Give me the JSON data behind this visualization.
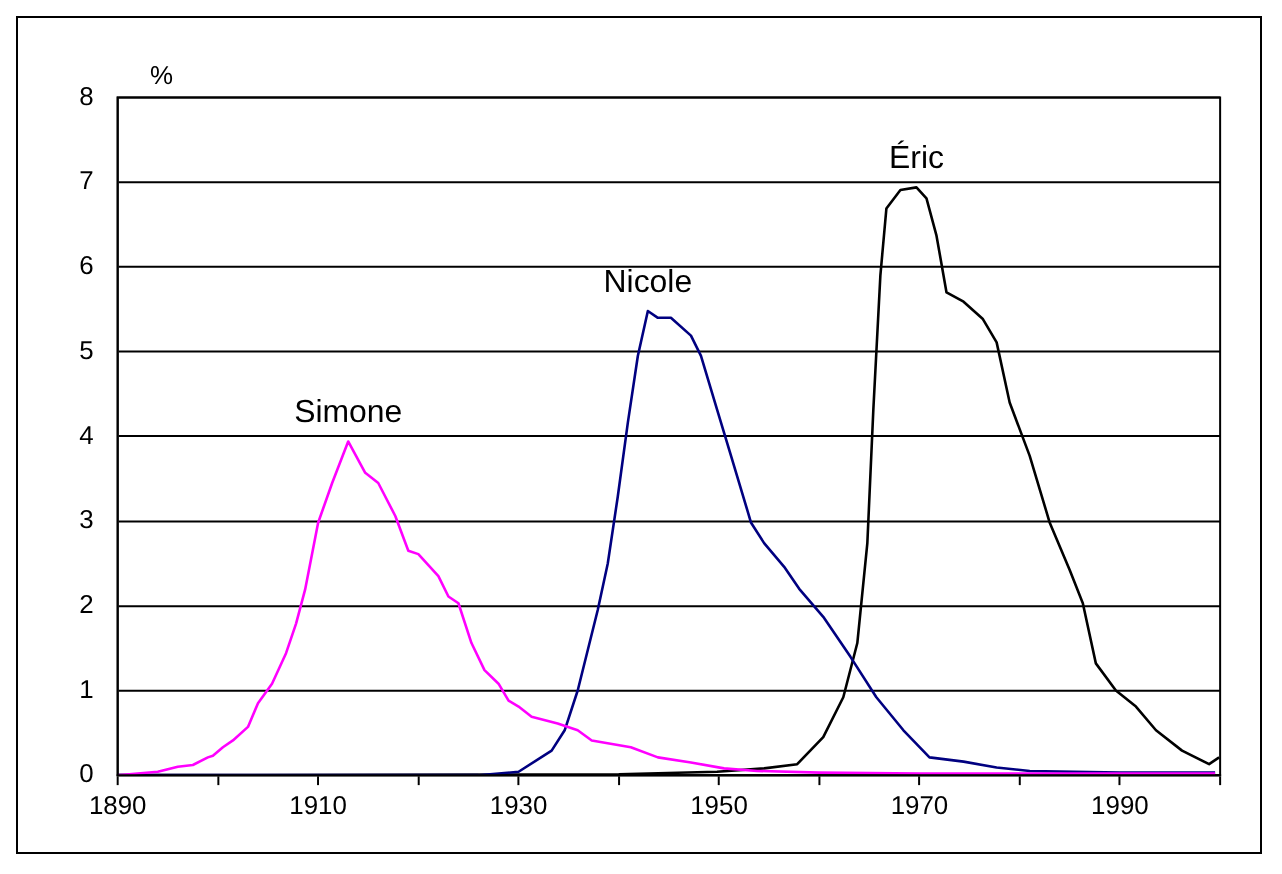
{
  "chart_data": {
    "type": "line",
    "ylabel": "%",
    "xlim": [
      1890,
      2000
    ],
    "xticks": [
      1890,
      {
        "value": 1900,
        "label": null
      },
      1910,
      {
        "value": 1920,
        "label": null
      },
      1930,
      {
        "value": 1940,
        "label": null
      },
      1950,
      {
        "value": 1960,
        "label": null
      },
      1970,
      {
        "value": 1980,
        "label": null
      },
      1990,
      {
        "value": 2000,
        "label": null
      }
    ],
    "ylim": [
      0,
      8
    ],
    "yticks": [
      0,
      1,
      2,
      3,
      4,
      5,
      6,
      7,
      8
    ],
    "grid": "y",
    "legend": false,
    "marker": "none",
    "line_style": "solid",
    "series": [
      {
        "name": "Simone",
        "color": "#ff00ff",
        "x": [
          1890,
          1894,
          1896,
          1897.5,
          1899,
          1899.5,
          1900.5,
          1901.5,
          1903,
          1904,
          1905.4,
          1906.8,
          1907.8,
          1908.7,
          1910,
          1911.4,
          1913,
          1914.7,
          1916,
          1917.7,
          1919,
          1920,
          1922,
          1923,
          1924,
          1925.3,
          1926.6,
          1928,
          1929,
          1930,
          1931.3,
          1933.9,
          1935.9,
          1937.3,
          1941.2,
          1943.9,
          1947.2,
          1950.5,
          1953.8,
          1960,
          1970,
          1980,
          1990,
          1999.5
        ],
        "values": [
          0,
          0.04,
          0.1,
          0.12,
          0.21,
          0.23,
          0.33,
          0.41,
          0.57,
          0.85,
          1.08,
          1.44,
          1.79,
          2.19,
          2.98,
          3.45,
          3.94,
          3.57,
          3.45,
          3.06,
          2.65,
          2.61,
          2.35,
          2.11,
          2.03,
          1.56,
          1.24,
          1.08,
          0.88,
          0.81,
          0.69,
          0.61,
          0.53,
          0.41,
          0.33,
          0.21,
          0.15,
          0.08,
          0.05,
          0.03,
          0.02,
          0.02,
          0.02,
          0.02
        ]
      },
      {
        "name": "Nicole",
        "color": "#000080",
        "x": [
          1890,
          1926,
          1930,
          1933.3,
          1934.6,
          1935.9,
          1937.9,
          1938.9,
          1939.9,
          1940.9,
          1941.9,
          1942.9,
          1943.9,
          1945.2,
          1947.2,
          1948.2,
          1949.8,
          1951.2,
          1953.2,
          1954.5,
          1956.5,
          1958,
          1960.4,
          1963.1,
          1965.7,
          1968.4,
          1971,
          1974.4,
          1977.7,
          1981,
          1990,
          1999.5
        ],
        "values": [
          0,
          0,
          0.04,
          0.29,
          0.53,
          1.0,
          1.95,
          2.5,
          3.29,
          4.16,
          4.95,
          5.48,
          5.4,
          5.4,
          5.19,
          4.95,
          4.32,
          3.77,
          2.98,
          2.74,
          2.46,
          2.2,
          1.87,
          1.4,
          0.92,
          0.53,
          0.21,
          0.16,
          0.09,
          0.05,
          0.03,
          0.03
        ]
      },
      {
        "name": "Éric",
        "color": "#000000",
        "x": [
          1890,
          1940,
          1949.8,
          1954.5,
          1957.8,
          1960.4,
          1962.4,
          1963.8,
          1964.8,
          1965.4,
          1966.1,
          1966.7,
          1968.1,
          1969.7,
          1970.7,
          1971.7,
          1972.7,
          1974.4,
          1976.3,
          1977.7,
          1979,
          1981,
          1983,
          1985,
          1986.3,
          1987.6,
          1989.6,
          1991.6,
          1993.6,
          1996.2,
          1998.9,
          1999.9
        ],
        "values": [
          0,
          0.01,
          0.04,
          0.08,
          0.13,
          0.45,
          0.92,
          1.56,
          2.74,
          4.32,
          5.9,
          6.69,
          6.91,
          6.94,
          6.81,
          6.37,
          5.7,
          5.59,
          5.39,
          5.11,
          4.4,
          3.77,
          2.98,
          2.42,
          2.03,
          1.32,
          1.0,
          0.81,
          0.53,
          0.29,
          0.13,
          0.21
        ]
      }
    ]
  }
}
